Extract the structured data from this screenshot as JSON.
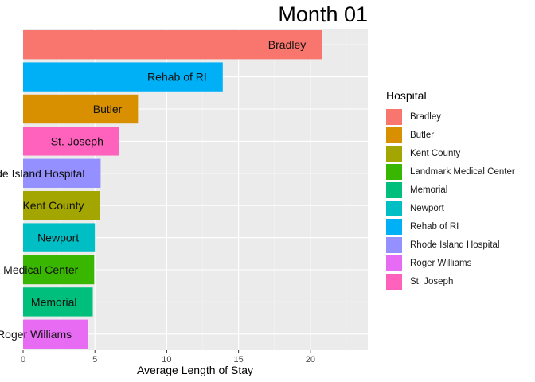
{
  "chart_data": {
    "type": "bar",
    "orientation": "horizontal",
    "title": "Month 01",
    "xlabel": "Average Length of Stay",
    "ylabel": "",
    "xlim": [
      0,
      24
    ],
    "xticks": [
      "0",
      "5",
      "10",
      "15",
      "20"
    ],
    "grid": true,
    "legend": {
      "title": "Hospital",
      "position": "right"
    },
    "categories": [
      "Bradley",
      "Rehab of RI",
      "Butler",
      "St. Joseph",
      "Rhode Island Hospital",
      "Kent County",
      "Newport",
      "Landmark Medical Center",
      "Memorial",
      "Roger Williams"
    ],
    "values": [
      20.8,
      13.9,
      8.0,
      6.7,
      5.4,
      5.35,
      5.0,
      4.95,
      4.85,
      4.5
    ],
    "colors": [
      "#F8766D",
      "#00B0F6",
      "#D89000",
      "#FF62BC",
      "#9590FF",
      "#A3A500",
      "#00BFC4",
      "#39B600",
      "#00BF7D",
      "#E76BF3"
    ],
    "legend_items": [
      {
        "label": "Bradley",
        "color": "#F8766D"
      },
      {
        "label": "Butler",
        "color": "#D89000"
      },
      {
        "label": "Kent County",
        "color": "#A3A500"
      },
      {
        "label": "Landmark Medical Center",
        "color": "#39B600"
      },
      {
        "label": "Memorial",
        "color": "#00BF7D"
      },
      {
        "label": "Newport",
        "color": "#00BFC4"
      },
      {
        "label": "Rehab of RI",
        "color": "#00B0F6"
      },
      {
        "label": "Rhode Island Hospital",
        "color": "#9590FF"
      },
      {
        "label": "Roger Williams",
        "color": "#E76BF3"
      },
      {
        "label": "St. Joseph",
        "color": "#FF62BC"
      }
    ]
  }
}
